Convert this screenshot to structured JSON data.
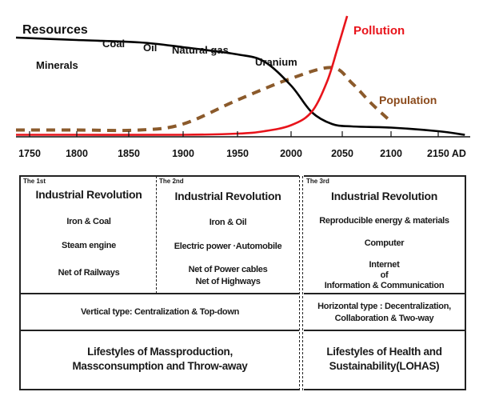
{
  "chart_data": {
    "type": "line",
    "title": "Resources",
    "xlabel": "",
    "ylabel": "",
    "x_ticks": [
      "1750",
      "1800",
      "1850",
      "1900",
      "1950",
      "2000",
      "2050",
      "2100",
      "2150 AD"
    ],
    "x_tick_values": [
      1750,
      1800,
      1850,
      1900,
      1950,
      2000,
      2050,
      2100,
      2150
    ],
    "xlim": [
      1735,
      2180
    ],
    "ylim": [
      0,
      100
    ],
    "series": [
      {
        "name": "Resources",
        "color": "#000000",
        "style": "solid",
        "x": [
          1735,
          1800,
          1860,
          1900,
          1950,
          1975,
          2000,
          2020,
          2040,
          2060,
          2100,
          2150,
          2175
        ],
        "values": [
          82,
          80,
          78,
          74,
          68,
          62,
          42,
          20,
          10,
          8,
          7,
          4,
          1
        ]
      },
      {
        "name": "Pollution",
        "color": "#e8141b",
        "style": "solid",
        "x": [
          1735,
          1800,
          1900,
          1950,
          1975,
          2000,
          2020,
          2035,
          2045,
          2055
        ],
        "values": [
          1,
          1,
          1,
          2,
          4,
          9,
          20,
          45,
          72,
          100
        ]
      },
      {
        "name": "Population",
        "color": "#8b5a2b",
        "style": "dashed",
        "x": [
          1735,
          1800,
          1860,
          1900,
          1950,
          2000,
          2040,
          2060,
          2080,
          2100
        ],
        "values": [
          5,
          5,
          5,
          10,
          30,
          48,
          57,
          44,
          27,
          12
        ]
      }
    ],
    "annotations": [
      "Coal",
      "Oil",
      "Natural gas",
      "Minerals",
      "Uranium"
    ],
    "legend": [
      "Pollution",
      "Population"
    ]
  },
  "chart_labels": {
    "resources": "Resources",
    "coal": "Coal",
    "oil": "Oil",
    "natural_gas": "Natural gas",
    "minerals": "Minerals",
    "uranium": "Uranium",
    "pollution": "Pollution",
    "population": "Population"
  },
  "revolutions": [
    {
      "tag": "The 1st",
      "title": "Industrial Revolution",
      "items": [
        "Iron & Coal",
        "Steam engine",
        "Net of Railways"
      ]
    },
    {
      "tag": "The 2nd",
      "title": "Industrial Revolution",
      "items": [
        "Iron & Oil",
        "Electric power ·Automobile",
        "Net of Power cables",
        "Net of Highways"
      ]
    },
    {
      "tag": "The 3rd",
      "title": "Industrial Revolution",
      "items": [
        "Reproducible energy & materials",
        "Computer",
        "Internet",
        "of",
        "Information & Communication"
      ]
    }
  ],
  "types": {
    "old": "Vertical type: Centralization & Top-down",
    "new_line1": "Horizontal type : Decentralization,",
    "new_line2": "Collaboration & Two-way"
  },
  "lifestyles": {
    "old_line1": "Lifestyles of Massproduction,",
    "old_line2": "Massconsumption and Throw-away",
    "new_line1": "Lifestyles of Health and",
    "new_line2": "Sustainability(LOHAS)"
  }
}
